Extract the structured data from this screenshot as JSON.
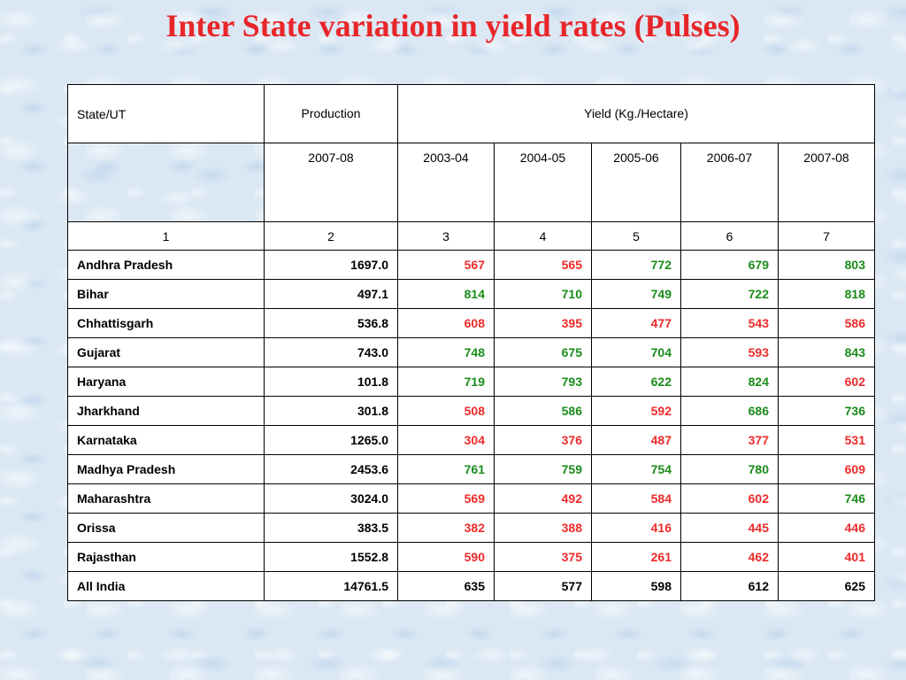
{
  "title": "Inter State variation in yield rates (Pulses)",
  "table": {
    "state_header": "State/UT",
    "production_header": "Production",
    "production_year": "2007-08",
    "yield_header": "Yield (Kg./Hectare)",
    "yield_years": [
      "2003-04",
      "2004-05",
      "2005-06",
      "2006-07",
      "2007-08"
    ],
    "column_numbers": [
      "1",
      "2",
      "3",
      "4",
      "5",
      "6",
      "7"
    ],
    "rows": [
      {
        "state": "Andhra Pradesh",
        "production": "1697.0",
        "yields": [
          "567",
          "565",
          "772",
          "679",
          "803"
        ]
      },
      {
        "state": "Bihar",
        "production": "497.1",
        "yields": [
          "814",
          "710",
          "749",
          "722",
          "818"
        ]
      },
      {
        "state": "Chhattisgarh",
        "production": "536.8",
        "yields": [
          "608",
          "395",
          "477",
          "543",
          "586"
        ]
      },
      {
        "state": "Gujarat",
        "production": "743.0",
        "yields": [
          "748",
          "675",
          "704",
          "593",
          "843"
        ]
      },
      {
        "state": "Haryana",
        "production": "101.8",
        "yields": [
          "719",
          "793",
          "622",
          "824",
          "602"
        ]
      },
      {
        "state": "Jharkhand",
        "production": "301.8",
        "yields": [
          "508",
          "586",
          "592",
          "686",
          "736"
        ]
      },
      {
        "state": "Karnataka",
        "production": "1265.0",
        "yields": [
          "304",
          "376",
          "487",
          "377",
          "531"
        ]
      },
      {
        "state": "Madhya Pradesh",
        "production": "2453.6",
        "yields": [
          "761",
          "759",
          "754",
          "780",
          "609"
        ]
      },
      {
        "state": "Maharashtra",
        "production": "3024.0",
        "yields": [
          "569",
          "492",
          "584",
          "602",
          "746"
        ]
      },
      {
        "state": "Orissa",
        "production": "383.5",
        "yields": [
          "382",
          "388",
          "416",
          "445",
          "446"
        ]
      },
      {
        "state": "Rajasthan",
        "production": "1552.8",
        "yields": [
          "590",
          "375",
          "261",
          "462",
          "401"
        ]
      },
      {
        "state": "All India",
        "production": "14761.5",
        "yields": [
          "635",
          "577",
          "598",
          "612",
          "625"
        ]
      }
    ]
  },
  "colors": {
    "above_all_india": "#1a8c1a",
    "below_all_india": "#ee2a2a",
    "all_india": "#000000",
    "title": "#e8262a"
  }
}
